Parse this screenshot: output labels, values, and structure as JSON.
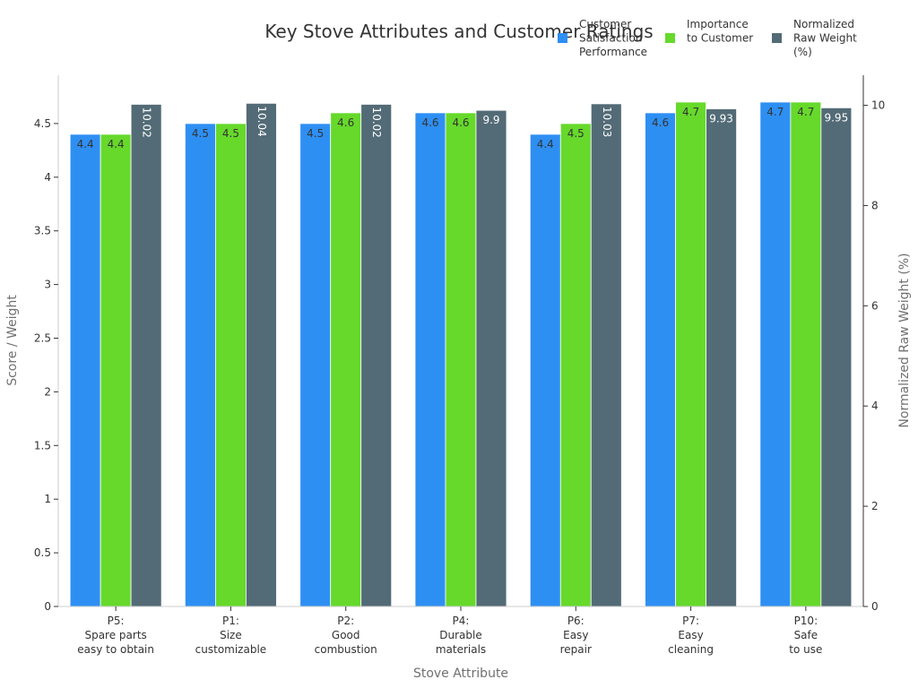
{
  "chart_data": {
    "type": "bar",
    "title": "Key Stove Attributes and Customer Ratings",
    "xlabel": "Stove Attribute",
    "ylabel": "Score / Weight",
    "y2label": "Normalized Raw Weight (%)",
    "categories": [
      [
        "P5:",
        "Spare parts",
        "easy to obtain"
      ],
      [
        "P1:",
        "Size",
        "customizable"
      ],
      [
        "P2:",
        "Good",
        "combustion"
      ],
      [
        "P4:",
        "Durable",
        "materials"
      ],
      [
        "P6:",
        "Easy",
        "repair"
      ],
      [
        "P7:",
        "Easy",
        "cleaning"
      ],
      [
        "P10:",
        "Safe",
        "to use"
      ]
    ],
    "ylim": [
      0,
      4.95
    ],
    "y2lim": [
      0,
      10.6
    ],
    "yticks": [
      "0",
      "0.5",
      "1",
      "1.5",
      "2",
      "2.5",
      "3",
      "3.5",
      "4",
      "4.5"
    ],
    "y2ticks": [
      "0",
      "2",
      "4",
      "6",
      "8",
      "10"
    ],
    "grid": false,
    "legend_position": "top-right",
    "series": [
      {
        "name": [
          "Customer",
          "Satisfaction",
          "Performance"
        ],
        "color": "#2e8ff3",
        "axis": "left",
        "values": [
          4.4,
          4.5,
          4.5,
          4.6,
          4.4,
          4.6,
          4.7
        ],
        "labels": [
          "4.4",
          "4.5",
          "4.5",
          "4.6",
          "4.4",
          "4.6",
          "4.7"
        ]
      },
      {
        "name": [
          "Importance",
          "to Customer"
        ],
        "color": "#66d92b",
        "axis": "left",
        "values": [
          4.4,
          4.5,
          4.6,
          4.6,
          4.5,
          4.7,
          4.7
        ],
        "labels": [
          "4.4",
          "4.5",
          "4.6",
          "4.6",
          "4.5",
          "4.7",
          "4.7"
        ]
      },
      {
        "name": [
          "Normalized",
          "Raw Weight",
          "(%)"
        ],
        "color": "#536b76",
        "axis": "right",
        "values": [
          10.02,
          10.04,
          10.02,
          9.9,
          10.03,
          9.93,
          9.95
        ],
        "labels": [
          "10.02",
          "10.04",
          "10.02",
          "9.9",
          "10.03",
          "9.93",
          "9.95"
        ]
      }
    ]
  }
}
